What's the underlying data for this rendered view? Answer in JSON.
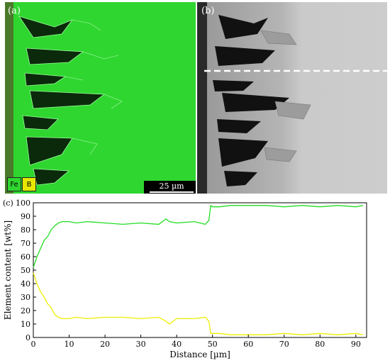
{
  "panel_a": {
    "letter": "(a)",
    "legend": [
      "Fe",
      "B"
    ],
    "scale_bar": "25 µm"
  },
  "panel_b": {
    "letter": "(b)"
  },
  "colors": {
    "fe": "#22dd22",
    "b": "#eeee00",
    "map_fe": "#2fd62f"
  },
  "chart_data": {
    "panel_label": "(c)",
    "type": "line",
    "xlabel": "Distance [µm]",
    "ylabel": "Element content [wt%]",
    "xlim": [
      0,
      93
    ],
    "ylim": [
      0,
      100
    ],
    "xticks": [
      0,
      10,
      20,
      30,
      40,
      50,
      60,
      70,
      80,
      90
    ],
    "yticks": [
      0,
      10,
      20,
      30,
      40,
      50,
      60,
      70,
      80,
      90,
      100
    ],
    "grid": false,
    "series": [
      {
        "name": "Fe",
        "color": "#22dd22",
        "x": [
          0,
          1,
          2,
          3,
          4,
          5,
          6,
          7,
          8,
          10,
          12,
          15,
          20,
          25,
          30,
          35,
          37,
          38,
          40,
          45,
          48,
          49,
          49.5,
          50,
          52,
          55,
          60,
          65,
          70,
          75,
          80,
          85,
          90,
          92
        ],
        "values": [
          52,
          60,
          66,
          72,
          75,
          80,
          83,
          85,
          86,
          86,
          85,
          86,
          85,
          84,
          85,
          84,
          88,
          86,
          85,
          86,
          84,
          87,
          98,
          97,
          97,
          98,
          98,
          98,
          97,
          98,
          97,
          98,
          97,
          98
        ]
      },
      {
        "name": "B",
        "color": "#eeee00",
        "x": [
          0,
          1,
          2,
          3,
          4,
          5,
          6,
          7,
          8,
          10,
          12,
          15,
          20,
          25,
          30,
          35,
          37,
          38,
          40,
          45,
          48,
          49,
          49.5,
          50,
          52,
          55,
          60,
          65,
          70,
          75,
          80,
          85,
          90,
          92
        ],
        "values": [
          48,
          40,
          34,
          30,
          25,
          22,
          17,
          15,
          14,
          14,
          15,
          14,
          15,
          15,
          14,
          15,
          12,
          10,
          14,
          14,
          15,
          12,
          3,
          3,
          3,
          2,
          2,
          2,
          3,
          2,
          3,
          2,
          3,
          2
        ]
      }
    ]
  }
}
